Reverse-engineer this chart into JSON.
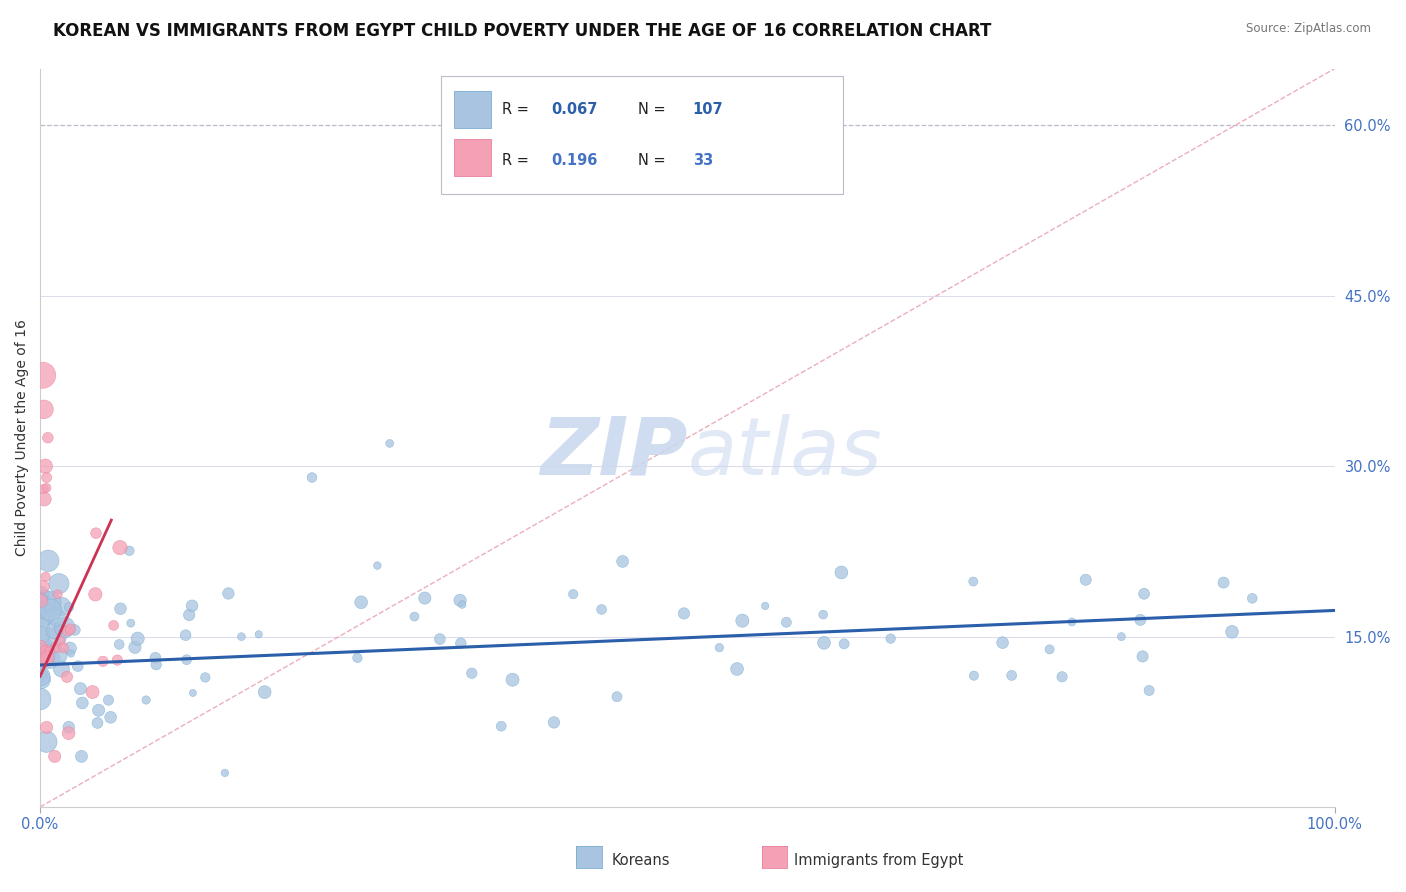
{
  "title": "KOREAN VS IMMIGRANTS FROM EGYPT CHILD POVERTY UNDER THE AGE OF 16 CORRELATION CHART",
  "source": "Source: ZipAtlas.com",
  "ylabel": "Child Poverty Under the Age of 16",
  "xlim": [
    0,
    1
  ],
  "ylim": [
    0.0,
    0.65
  ],
  "yticks": [
    0.15,
    0.3,
    0.45,
    0.6
  ],
  "ytick_labels": [
    "15.0%",
    "30.0%",
    "45.0%",
    "60.0%"
  ],
  "xticks": [
    0.0,
    1.0
  ],
  "xtick_labels": [
    "0.0%",
    "100.0%"
  ],
  "koreans_label": "Koreans",
  "egypt_label": "Immigrants from Egypt",
  "korean_color": "#a8c4e0",
  "egypt_color": "#f4a0b5",
  "korean_edge_color": "#7aaed4",
  "egypt_edge_color": "#e8809a",
  "korean_line_color": "#2b5faa",
  "egypt_line_color": "#cc3355",
  "diag_line_color": "#e8a0b0",
  "watermark_color": "#c8d8ee",
  "tick_label_color": "#4472c4",
  "background_color": "#ffffff",
  "title_fontsize": 12,
  "axis_label_fontsize": 10,
  "korean_R": 0.067,
  "korean_N": 107,
  "egypt_R": 0.196,
  "egypt_N": 33,
  "korean_line_intercept": 0.125,
  "korean_line_slope": 0.048,
  "egypt_line_intercept": 0.115,
  "egypt_line_slope": 2.5,
  "egypt_line_xmax": 0.055
}
